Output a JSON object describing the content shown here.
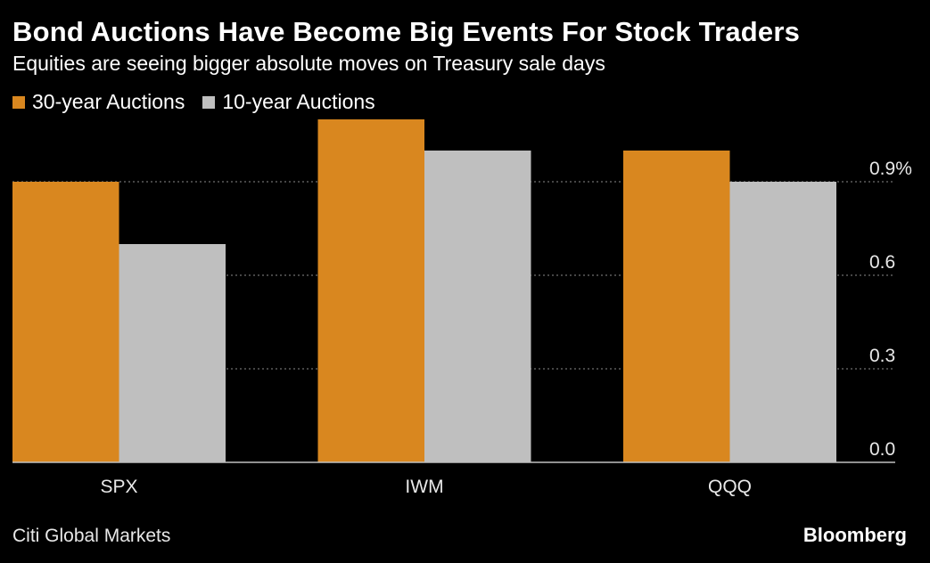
{
  "header": {
    "title": "Bond Auctions Have Become Big Events For Stock Traders",
    "subtitle": "Equities are seeing bigger absolute moves on Treasury sale days"
  },
  "footer": {
    "source": "Citi Global Markets",
    "brand": "Bloomberg"
  },
  "colors": {
    "series_30yr": "#d9871f",
    "series_10yr": "#bfbfbf",
    "grid": "#8a8a8a",
    "axis": "#bfbfbf"
  },
  "chart_data": {
    "type": "bar",
    "categories": [
      "SPX",
      "IWM",
      "QQQ"
    ],
    "series": [
      {
        "name": "30-year Auctions",
        "values": [
          0.9,
          1.1,
          1.0
        ]
      },
      {
        "name": "10-year Auctions",
        "values": [
          0.7,
          1.0,
          0.9
        ]
      }
    ],
    "ylim": [
      0,
      1.1
    ],
    "yticks": [
      "0.0",
      "0.3",
      "0.6",
      "0.9%"
    ],
    "ytick_values": [
      0,
      0.3,
      0.6,
      0.9
    ],
    "grid": true,
    "legend": "top-left",
    "y_axis_side": "right"
  }
}
